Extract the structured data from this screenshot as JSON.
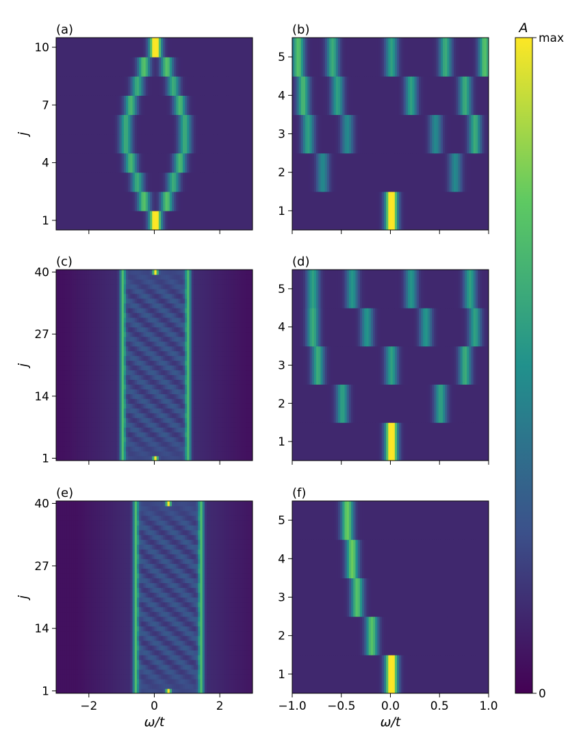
{
  "chart_data": [
    {
      "type": "heatmap",
      "panel_label": "(a)",
      "ylabel": "j",
      "xlabel": "",
      "xlim": [
        -3,
        3
      ],
      "x_ticks": [
        -2,
        0,
        2
      ],
      "x_tick_labels": [
        "",
        "",
        ""
      ],
      "ylim": [
        0.5,
        10.5
      ],
      "y_ticks": [
        1,
        4,
        7,
        10
      ],
      "y_tick_labels": [
        "1",
        "4",
        "7",
        "10"
      ],
      "rows": 10,
      "peaks": [
        {
          "j": 1,
          "omega": 0.0,
          "intensity": 1.0
        },
        {
          "j": 10,
          "omega": 0.0,
          "intensity": 1.0
        },
        {
          "j": 2,
          "omega": -0.35,
          "intensity": 0.6
        },
        {
          "j": 2,
          "omega": 0.35,
          "intensity": 0.6
        },
        {
          "j": 3,
          "omega": -0.55,
          "intensity": 0.5
        },
        {
          "j": 3,
          "omega": 0.55,
          "intensity": 0.5
        },
        {
          "j": 4,
          "omega": -0.75,
          "intensity": 0.55
        },
        {
          "j": 4,
          "omega": 0.75,
          "intensity": 0.55
        },
        {
          "j": 5,
          "omega": -0.9,
          "intensity": 0.5
        },
        {
          "j": 5,
          "omega": 0.9,
          "intensity": 0.5
        },
        {
          "j": 6,
          "omega": -0.9,
          "intensity": 0.5
        },
        {
          "j": 6,
          "omega": 0.9,
          "intensity": 0.5
        },
        {
          "j": 7,
          "omega": -0.75,
          "intensity": 0.55
        },
        {
          "j": 7,
          "omega": 0.75,
          "intensity": 0.55
        },
        {
          "j": 8,
          "omega": -0.55,
          "intensity": 0.5
        },
        {
          "j": 8,
          "omega": 0.55,
          "intensity": 0.5
        },
        {
          "j": 9,
          "omega": -0.35,
          "intensity": 0.6
        },
        {
          "j": 9,
          "omega": 0.35,
          "intensity": 0.6
        }
      ]
    },
    {
      "type": "heatmap",
      "panel_label": "(b)",
      "ylabel": "",
      "xlabel": "",
      "xlim": [
        -1,
        1
      ],
      "x_ticks": [
        -1,
        -0.5,
        0,
        0.5,
        1
      ],
      "x_tick_labels": [
        "",
        "",
        "",
        "",
        ""
      ],
      "ylim": [
        0.5,
        5.5
      ],
      "y_ticks": [
        1,
        2,
        3,
        4,
        5
      ],
      "y_tick_labels": [
        "1",
        "2",
        "3",
        "4",
        "5"
      ],
      "rows": 5,
      "peaks": [
        {
          "j": 1,
          "omega": 0.0,
          "intensity": 1.0
        },
        {
          "j": 2,
          "omega": -0.7,
          "intensity": 0.35
        },
        {
          "j": 2,
          "omega": 0.65,
          "intensity": 0.35
        },
        {
          "j": 3,
          "omega": -0.85,
          "intensity": 0.45
        },
        {
          "j": 3,
          "omega": -0.45,
          "intensity": 0.35
        },
        {
          "j": 3,
          "omega": 0.45,
          "intensity": 0.35
        },
        {
          "j": 3,
          "omega": 0.85,
          "intensity": 0.5
        },
        {
          "j": 4,
          "omega": -0.9,
          "intensity": 0.55
        },
        {
          "j": 4,
          "omega": -0.55,
          "intensity": 0.45
        },
        {
          "j": 4,
          "omega": 0.2,
          "intensity": 0.45
        },
        {
          "j": 4,
          "omega": 0.75,
          "intensity": 0.5
        },
        {
          "j": 5,
          "omega": -0.95,
          "intensity": 0.6
        },
        {
          "j": 5,
          "omega": -0.6,
          "intensity": 0.5
        },
        {
          "j": 5,
          "omega": 0.0,
          "intensity": 0.45
        },
        {
          "j": 5,
          "omega": 0.55,
          "intensity": 0.5
        },
        {
          "j": 5,
          "omega": 0.95,
          "intensity": 0.6
        }
      ]
    },
    {
      "type": "heatmap",
      "panel_label": "(c)",
      "ylabel": "j",
      "xlabel": "",
      "xlim": [
        -3,
        3
      ],
      "x_ticks": [
        -2,
        0,
        2
      ],
      "x_tick_labels": [
        "",
        "",
        ""
      ],
      "ylim": [
        0.5,
        40.5
      ],
      "y_ticks": [
        1,
        14,
        27,
        40
      ],
      "y_tick_labels": [
        "1",
        "14",
        "27",
        "40"
      ],
      "rows": 40,
      "band_edges": [
        -1.0,
        1.0
      ],
      "edge_intensity": 0.55,
      "end_peak_intensity": 1.0
    },
    {
      "type": "heatmap",
      "panel_label": "(d)",
      "ylabel": "",
      "xlabel": "",
      "xlim": [
        -1,
        1
      ],
      "x_ticks": [
        -1,
        -0.5,
        0,
        0.5,
        1
      ],
      "x_tick_labels": [
        "",
        "",
        "",
        "",
        ""
      ],
      "ylim": [
        0.5,
        5.5
      ],
      "y_ticks": [
        1,
        2,
        3,
        4,
        5
      ],
      "y_tick_labels": [
        "1",
        "2",
        "3",
        "4",
        "5"
      ],
      "rows": 5,
      "peaks": [
        {
          "j": 1,
          "omega": 0.0,
          "intensity": 1.0
        },
        {
          "j": 2,
          "omega": -0.5,
          "intensity": 0.45
        },
        {
          "j": 2,
          "omega": 0.5,
          "intensity": 0.45
        },
        {
          "j": 3,
          "omega": -0.75,
          "intensity": 0.5
        },
        {
          "j": 3,
          "omega": 0.0,
          "intensity": 0.45
        },
        {
          "j": 3,
          "omega": 0.75,
          "intensity": 0.5
        },
        {
          "j": 4,
          "omega": -0.8,
          "intensity": 0.5
        },
        {
          "j": 4,
          "omega": -0.25,
          "intensity": 0.4
        },
        {
          "j": 4,
          "omega": 0.35,
          "intensity": 0.4
        },
        {
          "j": 4,
          "omega": 0.85,
          "intensity": 0.45
        },
        {
          "j": 5,
          "omega": -0.8,
          "intensity": 0.45
        },
        {
          "j": 5,
          "omega": -0.4,
          "intensity": 0.4
        },
        {
          "j": 5,
          "omega": 0.2,
          "intensity": 0.4
        },
        {
          "j": 5,
          "omega": 0.8,
          "intensity": 0.45
        }
      ]
    },
    {
      "type": "heatmap",
      "panel_label": "(e)",
      "ylabel": "j",
      "xlabel": "ω/t",
      "xlim": [
        -3,
        3
      ],
      "x_ticks": [
        -2,
        0,
        2
      ],
      "x_tick_labels": [
        "−2",
        "0",
        "2"
      ],
      "ylim": [
        0.5,
        40.5
      ],
      "y_ticks": [
        1,
        14,
        27,
        40
      ],
      "y_tick_labels": [
        "1",
        "14",
        "27",
        "40"
      ],
      "rows": 40,
      "band_edges": [
        -0.6,
        1.4
      ],
      "edge_intensity": 0.55,
      "end_peak_intensity": 1.0
    },
    {
      "type": "heatmap",
      "panel_label": "(f)",
      "ylabel": "",
      "xlabel": "ω/t",
      "xlim": [
        -1,
        1
      ],
      "x_ticks": [
        -1,
        -0.5,
        0,
        0.5,
        1
      ],
      "x_tick_labels": [
        "−1.0",
        "−0.5",
        "0.0",
        "0.5",
        "1.0"
      ],
      "ylim": [
        0.5,
        5.5
      ],
      "y_ticks": [
        1,
        2,
        3,
        4,
        5
      ],
      "y_tick_labels": [
        "1",
        "2",
        "3",
        "4",
        "5"
      ],
      "rows": 5,
      "peaks": [
        {
          "j": 1,
          "omega": 0.0,
          "intensity": 1.0
        },
        {
          "j": 2,
          "omega": -0.2,
          "intensity": 0.6
        },
        {
          "j": 3,
          "omega": -0.35,
          "intensity": 0.6
        },
        {
          "j": 4,
          "omega": -0.4,
          "intensity": 0.65
        },
        {
          "j": 5,
          "omega": -0.45,
          "intensity": 0.65
        }
      ]
    }
  ],
  "colorbar": {
    "title": "A",
    "max_label": "max",
    "min_label": "0",
    "colormap": "viridis",
    "colors": [
      "#440154",
      "#3b528b",
      "#21918c",
      "#5ec962",
      "#fde725"
    ]
  }
}
